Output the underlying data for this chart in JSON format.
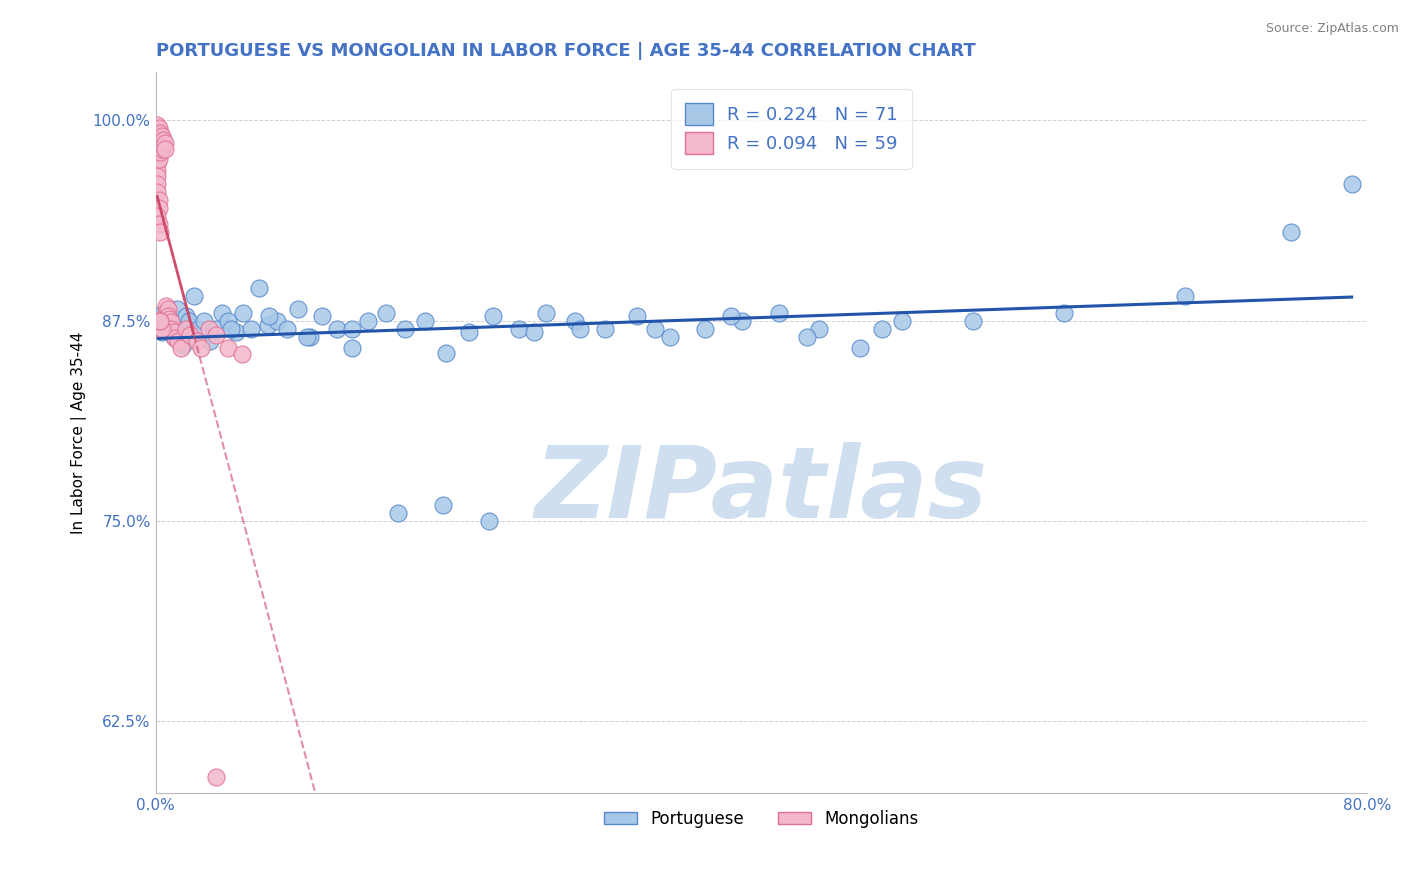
{
  "title": "PORTUGUESE VS MONGOLIAN IN LABOR FORCE | AGE 35-44 CORRELATION CHART",
  "source_text": "Source: ZipAtlas.com",
  "ylabel": "In Labor Force | Age 35-44",
  "xlim": [
    0.0,
    0.8
  ],
  "ylim": [
    0.58,
    1.03
  ],
  "xticks": [
    0.0,
    0.1,
    0.2,
    0.3,
    0.4,
    0.5,
    0.6,
    0.7,
    0.8
  ],
  "xticklabels": [
    "0.0%",
    "",
    "",
    "",
    "",
    "",
    "",
    "",
    "80.0%"
  ],
  "ytick_positions": [
    0.625,
    0.75,
    0.875,
    1.0
  ],
  "yticklabels": [
    "62.5%",
    "75.0%",
    "87.5%",
    "100.0%"
  ],
  "title_color": "#4472c4",
  "title_fontsize": 13,
  "ylabel_fontsize": 11,
  "ytick_color": "#4472c4",
  "xtick_color": "#4472c4",
  "background_color": "#ffffff",
  "watermark_text": "ZIPatlas",
  "watermark_color": "#d0dff0",
  "watermark_fontsize": 72,
  "R_portuguese": 0.224,
  "N_portuguese": 71,
  "R_mongolian": 0.094,
  "N_mongolian": 59,
  "portuguese_color": "#a8c8e8",
  "mongolian_color": "#f4b8cc",
  "portuguese_edge": "#5588cc",
  "mongolian_edge": "#e07090",
  "trend_portuguese_color": "#2255aa",
  "trend_mongolian_color": "#cc4466",
  "trend_mongolian_dash_color": "#ddaabb",
  "legend_portuguese_label": "Portuguese",
  "legend_mongolian_label": "Mongolians",
  "portuguese_x": [
    0.002,
    0.003,
    0.004,
    0.005,
    0.006,
    0.007,
    0.008,
    0.009,
    0.01,
    0.012,
    0.014,
    0.016,
    0.018,
    0.02,
    0.022,
    0.025,
    0.028,
    0.032,
    0.036,
    0.04,
    0.044,
    0.048,
    0.053,
    0.058,
    0.063,
    0.068,
    0.074,
    0.08,
    0.087,
    0.094,
    0.102,
    0.11,
    0.12,
    0.13,
    0.14,
    0.152,
    0.165,
    0.178,
    0.192,
    0.207,
    0.223,
    0.24,
    0.258,
    0.277,
    0.297,
    0.318,
    0.34,
    0.363,
    0.387,
    0.412,
    0.438,
    0.465,
    0.493,
    0.05,
    0.075,
    0.1,
    0.13,
    0.16,
    0.19,
    0.22,
    0.25,
    0.28,
    0.33,
    0.38,
    0.43,
    0.48,
    0.54,
    0.6,
    0.68,
    0.75,
    0.79
  ],
  "portuguese_y": [
    0.876,
    0.871,
    0.868,
    0.88,
    0.872,
    0.874,
    0.869,
    0.877,
    0.873,
    0.865,
    0.882,
    0.87,
    0.86,
    0.878,
    0.875,
    0.89,
    0.87,
    0.875,
    0.862,
    0.87,
    0.88,
    0.875,
    0.868,
    0.88,
    0.87,
    0.895,
    0.872,
    0.875,
    0.87,
    0.882,
    0.865,
    0.878,
    0.87,
    0.858,
    0.875,
    0.88,
    0.87,
    0.875,
    0.855,
    0.868,
    0.878,
    0.87,
    0.88,
    0.875,
    0.87,
    0.878,
    0.865,
    0.87,
    0.875,
    0.88,
    0.87,
    0.858,
    0.875,
    0.87,
    0.878,
    0.865,
    0.87,
    0.755,
    0.76,
    0.75,
    0.868,
    0.87,
    0.87,
    0.878,
    0.865,
    0.87,
    0.875,
    0.88,
    0.89,
    0.93,
    0.96
  ],
  "mongolian_x": [
    0.001,
    0.001,
    0.001,
    0.001,
    0.001,
    0.001,
    0.001,
    0.001,
    0.001,
    0.002,
    0.002,
    0.002,
    0.002,
    0.002,
    0.002,
    0.003,
    0.003,
    0.003,
    0.003,
    0.004,
    0.004,
    0.004,
    0.005,
    0.005,
    0.006,
    0.006,
    0.007,
    0.007,
    0.008,
    0.008,
    0.009,
    0.01,
    0.01,
    0.012,
    0.013,
    0.015,
    0.017,
    0.02,
    0.023,
    0.027,
    0.03,
    0.035,
    0.04,
    0.048,
    0.057,
    0.001,
    0.002,
    0.003,
    0.004,
    0.002,
    0.003,
    0.001,
    0.001,
    0.002,
    0.002,
    0.001,
    0.002,
    0.003,
    0.04
  ],
  "mongolian_y": [
    0.997,
    0.993,
    0.99,
    0.986,
    0.982,
    0.977,
    0.973,
    0.969,
    0.965,
    0.995,
    0.991,
    0.988,
    0.984,
    0.98,
    0.976,
    0.992,
    0.988,
    0.984,
    0.98,
    0.99,
    0.986,
    0.982,
    0.988,
    0.984,
    0.986,
    0.982,
    0.884,
    0.88,
    0.882,
    0.878,
    0.876,
    0.874,
    0.87,
    0.868,
    0.864,
    0.862,
    0.858,
    0.87,
    0.866,
    0.862,
    0.858,
    0.87,
    0.866,
    0.858,
    0.854,
    0.87,
    0.87,
    0.87,
    0.87,
    0.875,
    0.875,
    0.96,
    0.955,
    0.95,
    0.945,
    0.94,
    0.935,
    0.93,
    0.59
  ]
}
